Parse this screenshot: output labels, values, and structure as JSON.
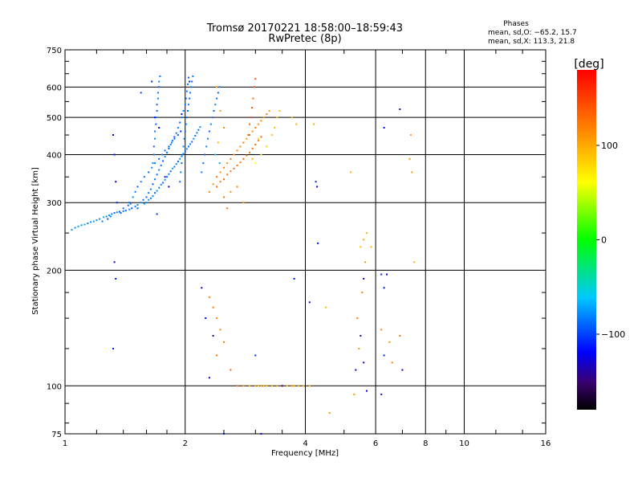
{
  "header": {
    "title": "Tromsø 20170221 18:58:00–18:59:43",
    "subtitle": "RwPretec (8p)",
    "stats_title": "Phases",
    "stats_line1": "mean, sd,O: −65.2, 15.7",
    "stats_line2": "mean, sd,X: 113.3, 21.8"
  },
  "colorbar": {
    "label": "[deg]",
    "min": -180,
    "max": 180,
    "ticks": [
      {
        "value": 100,
        "label": "100"
      },
      {
        "value": 0,
        "label": "0"
      },
      {
        "value": -100,
        "label": "−100"
      }
    ]
  },
  "chart_data": {
    "type": "scatter",
    "xlabel": "Frequency [MHz]",
    "ylabel": "Stationary phase Virtual Height [km]",
    "xscale": "log",
    "yscale": "log",
    "xlim": [
      1,
      16
    ],
    "ylim": [
      75,
      750
    ],
    "grid": true,
    "x_ticks": [
      {
        "value": 1,
        "label": "1"
      },
      {
        "value": 2,
        "label": "2"
      },
      {
        "value": 4,
        "label": "4"
      },
      {
        "value": 6,
        "label": "6"
      },
      {
        "value": 8,
        "label": "8"
      },
      {
        "value": 10,
        "label": "10"
      },
      {
        "value": 16,
        "label": "16"
      }
    ],
    "y_ticks": [
      {
        "value": 75,
        "label": "75"
      },
      {
        "value": 100,
        "label": "100"
      },
      {
        "value": 200,
        "label": "200"
      },
      {
        "value": 300,
        "label": "300"
      },
      {
        "value": 400,
        "label": "400"
      },
      {
        "value": 500,
        "label": "500"
      },
      {
        "value": 600,
        "label": "600"
      },
      {
        "value": 750,
        "label": "750"
      }
    ],
    "point_columns": [
      "frequency_mhz",
      "virtual_height_km",
      "phase_deg"
    ],
    "points": [
      [
        1.04,
        255,
        -75
      ],
      [
        1.06,
        258,
        -75
      ],
      [
        1.08,
        260,
        -70
      ],
      [
        1.1,
        262,
        -75
      ],
      [
        1.12,
        263,
        -70
      ],
      [
        1.14,
        265,
        -80
      ],
      [
        1.16,
        267,
        -75
      ],
      [
        1.18,
        268,
        -70
      ],
      [
        1.2,
        270,
        -80
      ],
      [
        1.22,
        272,
        -75
      ],
      [
        1.25,
        275,
        -70
      ],
      [
        1.27,
        276,
        -80
      ],
      [
        1.29,
        278,
        -75
      ],
      [
        1.31,
        280,
        -85
      ],
      [
        1.33,
        282,
        -90
      ],
      [
        1.35,
        283,
        -80
      ],
      [
        1.37,
        284,
        -95
      ],
      [
        1.4,
        285,
        -85
      ],
      [
        1.42,
        286,
        -90
      ],
      [
        1.45,
        288,
        -80
      ],
      [
        1.47,
        290,
        -95
      ],
      [
        1.5,
        293,
        -85
      ],
      [
        1.52,
        296,
        -80
      ],
      [
        1.55,
        300,
        -75
      ],
      [
        1.57,
        305,
        -85
      ],
      [
        1.6,
        310,
        -90
      ],
      [
        1.62,
        318,
        -85
      ],
      [
        1.64,
        325,
        -80
      ],
      [
        1.66,
        335,
        -95
      ],
      [
        1.68,
        345,
        -85
      ],
      [
        1.7,
        355,
        -90
      ],
      [
        1.72,
        365,
        -80
      ],
      [
        1.74,
        375,
        -85
      ],
      [
        1.76,
        385,
        -95
      ],
      [
        1.78,
        395,
        -80
      ],
      [
        1.8,
        405,
        -85
      ],
      [
        1.82,
        415,
        -90
      ],
      [
        1.84,
        425,
        -80
      ],
      [
        1.86,
        435,
        -85
      ],
      [
        1.88,
        445,
        -95
      ],
      [
        1.9,
        455,
        -85
      ],
      [
        1.92,
        470,
        -80
      ],
      [
        1.94,
        485,
        -90
      ],
      [
        1.96,
        500,
        -85
      ],
      [
        1.98,
        520,
        -80
      ],
      [
        2.0,
        540,
        -85
      ],
      [
        2.01,
        560,
        -90
      ],
      [
        2.02,
        585,
        -80
      ],
      [
        2.03,
        610,
        -85
      ],
      [
        2.04,
        635,
        -90
      ],
      [
        1.6,
        300,
        -80
      ],
      [
        1.62,
        305,
        -75
      ],
      [
        1.64,
        308,
        -85
      ],
      [
        1.66,
        312,
        -80
      ],
      [
        1.68,
        318,
        -90
      ],
      [
        1.7,
        322,
        -75
      ],
      [
        1.72,
        328,
        -85
      ],
      [
        1.74,
        334,
        -80
      ],
      [
        1.76,
        338,
        -90
      ],
      [
        1.78,
        344,
        -75
      ],
      [
        1.8,
        350,
        -85
      ],
      [
        1.82,
        356,
        -80
      ],
      [
        1.84,
        362,
        -90
      ],
      [
        1.86,
        368,
        -75
      ],
      [
        1.88,
        372,
        -85
      ],
      [
        1.9,
        378,
        -80
      ],
      [
        1.92,
        384,
        -90
      ],
      [
        1.94,
        390,
        -75
      ],
      [
        1.96,
        396,
        -85
      ],
      [
        1.98,
        402,
        -80
      ],
      [
        2.0,
        408,
        -90
      ],
      [
        2.02,
        414,
        -75
      ],
      [
        2.04,
        420,
        -85
      ],
      [
        2.06,
        426,
        -80
      ],
      [
        2.08,
        432,
        -90
      ],
      [
        2.1,
        440,
        -75
      ],
      [
        2.12,
        448,
        -85
      ],
      [
        2.14,
        456,
        -80
      ],
      [
        2.16,
        464,
        -90
      ],
      [
        2.18,
        472,
        -75
      ],
      [
        1.66,
        380,
        -80
      ],
      [
        1.67,
        400,
        -85
      ],
      [
        1.67,
        420,
        -90
      ],
      [
        1.68,
        440,
        -80
      ],
      [
        1.68,
        460,
        -85
      ],
      [
        1.69,
        480,
        -90
      ],
      [
        1.69,
        500,
        -80
      ],
      [
        1.7,
        520,
        -85
      ],
      [
        1.7,
        540,
        -90
      ],
      [
        1.71,
        560,
        -80
      ],
      [
        1.71,
        580,
        -85
      ],
      [
        1.72,
        600,
        -90
      ],
      [
        1.72,
        620,
        -80
      ],
      [
        1.73,
        640,
        -85
      ],
      [
        1.94,
        340,
        -85
      ],
      [
        1.95,
        360,
        -80
      ],
      [
        1.96,
        380,
        -90
      ],
      [
        1.97,
        400,
        -85
      ],
      [
        1.98,
        420,
        -80
      ],
      [
        1.99,
        440,
        -90
      ],
      [
        2.0,
        460,
        -85
      ],
      [
        2.01,
        480,
        -80
      ],
      [
        2.02,
        500,
        -90
      ],
      [
        2.03,
        520,
        -85
      ],
      [
        2.04,
        540,
        -80
      ],
      [
        2.05,
        560,
        -90
      ],
      [
        2.06,
        580,
        -85
      ],
      [
        2.07,
        600,
        -80
      ],
      [
        2.08,
        620,
        -90
      ],
      [
        2.09,
        640,
        -85
      ],
      [
        2.2,
        360,
        -80
      ],
      [
        2.22,
        380,
        -85
      ],
      [
        2.24,
        400,
        -90
      ],
      [
        2.26,
        420,
        -80
      ],
      [
        2.28,
        440,
        -85
      ],
      [
        2.3,
        460,
        -90
      ],
      [
        2.32,
        480,
        -80
      ],
      [
        2.34,
        500,
        -85
      ],
      [
        2.36,
        520,
        -90
      ],
      [
        2.38,
        540,
        -80
      ],
      [
        2.4,
        560,
        -85
      ],
      [
        2.42,
        580,
        -90
      ],
      [
        2.44,
        600,
        -80
      ],
      [
        1.45,
        300,
        -90
      ],
      [
        1.48,
        310,
        -80
      ],
      [
        1.5,
        320,
        -85
      ],
      [
        1.52,
        330,
        -90
      ],
      [
        1.55,
        340,
        -80
      ],
      [
        1.58,
        350,
        -85
      ],
      [
        1.62,
        360,
        -90
      ],
      [
        1.65,
        370,
        -80
      ],
      [
        1.68,
        380,
        -85
      ],
      [
        1.72,
        390,
        -90
      ],
      [
        1.75,
        400,
        -80
      ],
      [
        1.78,
        410,
        -85
      ],
      [
        1.82,
        420,
        -90
      ],
      [
        1.85,
        430,
        -80
      ],
      [
        1.88,
        440,
        -85
      ],
      [
        1.92,
        450,
        -90
      ],
      [
        1.55,
        580,
        -100
      ],
      [
        1.65,
        620,
        -110
      ],
      [
        1.68,
        500,
        -120
      ],
      [
        1.72,
        470,
        -130
      ],
      [
        1.78,
        350,
        -115
      ],
      [
        1.82,
        330,
        -125
      ],
      [
        1.95,
        460,
        -110
      ],
      [
        1.96,
        510,
        -130
      ],
      [
        2.05,
        620,
        -115
      ],
      [
        1.7,
        280,
        -105
      ],
      [
        1.32,
        450,
        -120
      ],
      [
        1.33,
        400,
        -115
      ],
      [
        1.34,
        340,
        -125
      ],
      [
        1.35,
        300,
        -110
      ],
      [
        1.33,
        210,
        -130
      ],
      [
        1.34,
        190,
        -115
      ],
      [
        1.32,
        125,
        -110
      ],
      [
        2.3,
        320,
        120
      ],
      [
        2.35,
        335,
        115
      ],
      [
        2.4,
        350,
        125
      ],
      [
        2.45,
        360,
        110
      ],
      [
        2.5,
        370,
        120
      ],
      [
        2.55,
        380,
        115
      ],
      [
        2.6,
        390,
        125
      ],
      [
        2.65,
        400,
        110
      ],
      [
        2.7,
        410,
        120
      ],
      [
        2.75,
        420,
        115
      ],
      [
        2.8,
        430,
        125
      ],
      [
        2.85,
        440,
        110
      ],
      [
        2.9,
        450,
        120
      ],
      [
        2.95,
        460,
        115
      ],
      [
        3.0,
        470,
        125
      ],
      [
        3.05,
        480,
        110
      ],
      [
        3.1,
        490,
        120
      ],
      [
        3.15,
        500,
        115
      ],
      [
        3.2,
        510,
        125
      ],
      [
        3.25,
        520,
        110
      ],
      [
        2.4,
        330,
        130
      ],
      [
        2.45,
        340,
        125
      ],
      [
        2.5,
        345,
        135
      ],
      [
        2.55,
        355,
        130
      ],
      [
        2.6,
        362,
        125
      ],
      [
        2.65,
        368,
        135
      ],
      [
        2.7,
        375,
        130
      ],
      [
        2.75,
        382,
        125
      ],
      [
        2.8,
        390,
        135
      ],
      [
        2.85,
        398,
        130
      ],
      [
        2.9,
        405,
        125
      ],
      [
        2.95,
        415,
        135
      ],
      [
        3.0,
        425,
        130
      ],
      [
        3.05,
        435,
        125
      ],
      [
        3.1,
        445,
        135
      ],
      [
        2.88,
        450,
        140
      ],
      [
        2.9,
        480,
        135
      ],
      [
        2.92,
        500,
        145
      ],
      [
        2.94,
        530,
        140
      ],
      [
        2.96,
        560,
        135
      ],
      [
        2.98,
        600,
        145
      ],
      [
        3.0,
        630,
        140
      ],
      [
        3.3,
        450,
        90
      ],
      [
        3.35,
        470,
        95
      ],
      [
        3.4,
        500,
        85
      ],
      [
        3.45,
        520,
        90
      ],
      [
        3.2,
        420,
        80
      ],
      [
        3.1,
        400,
        70
      ],
      [
        3.0,
        380,
        60
      ],
      [
        3.05,
        440,
        75
      ],
      [
        2.95,
        390,
        100
      ],
      [
        2.8,
        300,
        110
      ],
      [
        2.7,
        330,
        120
      ],
      [
        2.6,
        320,
        115
      ],
      [
        2.5,
        310,
        125
      ],
      [
        2.55,
        290,
        130
      ],
      [
        2.4,
        600,
        110
      ],
      [
        2.45,
        520,
        105
      ],
      [
        2.5,
        470,
        115
      ],
      [
        2.42,
        430,
        95
      ],
      [
        2.38,
        400,
        -60
      ],
      [
        2.44,
        380,
        -70
      ],
      [
        2.3,
        170,
        120
      ],
      [
        2.35,
        160,
        125
      ],
      [
        2.4,
        150,
        115
      ],
      [
        2.45,
        140,
        120
      ],
      [
        2.5,
        130,
        125
      ],
      [
        2.4,
        120,
        130
      ],
      [
        2.6,
        110,
        135
      ],
      [
        2.7,
        100,
        130
      ],
      [
        2.8,
        100,
        110
      ],
      [
        2.9,
        100,
        100
      ],
      [
        3.0,
        100,
        105
      ],
      [
        3.05,
        100,
        95
      ],
      [
        3.1,
        100,
        110
      ],
      [
        3.15,
        100,
        100
      ],
      [
        3.2,
        100,
        95
      ],
      [
        3.3,
        100,
        100
      ],
      [
        3.4,
        100,
        105
      ],
      [
        3.5,
        100,
        100
      ],
      [
        3.6,
        100,
        95
      ],
      [
        3.7,
        100,
        110
      ],
      [
        3.75,
        100,
        100
      ],
      [
        3.85,
        100,
        105
      ],
      [
        3.95,
        100,
        100
      ],
      [
        4.1,
        100,
        95
      ],
      [
        2.2,
        180,
        -130
      ],
      [
        2.25,
        150,
        -120
      ],
      [
        2.35,
        135,
        -140
      ],
      [
        2.3,
        105,
        -125
      ],
      [
        2.5,
        75,
        -110
      ],
      [
        3.1,
        75,
        -130
      ],
      [
        3.0,
        120,
        -110
      ],
      [
        3.5,
        100,
        -140
      ],
      [
        3.7,
        500,
        95
      ],
      [
        3.8,
        480,
        100
      ],
      [
        4.2,
        480,
        95
      ],
      [
        4.25,
        340,
        -110
      ],
      [
        4.28,
        330,
        -120
      ],
      [
        4.3,
        235,
        -115
      ],
      [
        4.1,
        165,
        -125
      ],
      [
        3.75,
        190,
        -115
      ],
      [
        4.5,
        160,
        95
      ],
      [
        4.6,
        85,
        105
      ],
      [
        5.2,
        360,
        100
      ],
      [
        5.5,
        230,
        90
      ],
      [
        5.6,
        240,
        100
      ],
      [
        5.7,
        250,
        95
      ],
      [
        5.65,
        210,
        110
      ],
      [
        5.6,
        190,
        -130
      ],
      [
        5.55,
        175,
        120
      ],
      [
        5.4,
        150,
        125
      ],
      [
        5.5,
        135,
        -140
      ],
      [
        5.45,
        125,
        110
      ],
      [
        5.6,
        115,
        -130
      ],
      [
        5.35,
        110,
        -125
      ],
      [
        5.3,
        95,
        110
      ],
      [
        5.7,
        97,
        -120
      ],
      [
        5.85,
        230,
        95
      ],
      [
        6.2,
        195,
        -110
      ],
      [
        6.3,
        180,
        -115
      ],
      [
        6.4,
        195,
        -120
      ],
      [
        6.2,
        140,
        120
      ],
      [
        6.5,
        130,
        115
      ],
      [
        6.3,
        120,
        -110
      ],
      [
        6.6,
        115,
        120
      ],
      [
        6.9,
        135,
        125
      ],
      [
        7.0,
        110,
        -130
      ],
      [
        7.5,
        210,
        100
      ],
      [
        7.4,
        360,
        110
      ],
      [
        7.3,
        390,
        115
      ],
      [
        7.35,
        450,
        105
      ],
      [
        6.9,
        525,
        -140
      ],
      [
        6.3,
        470,
        -120
      ],
      [
        6.2,
        95,
        -130
      ],
      [
        1.4,
        290,
        -85
      ],
      [
        1.44,
        295,
        -90
      ],
      [
        1.46,
        298,
        -80
      ],
      [
        1.52,
        290,
        -95
      ],
      [
        1.58,
        298,
        -75
      ],
      [
        1.38,
        282,
        -90
      ],
      [
        1.3,
        276,
        -85
      ],
      [
        1.28,
        272,
        -95
      ],
      [
        1.24,
        268,
        -80
      ]
    ]
  }
}
